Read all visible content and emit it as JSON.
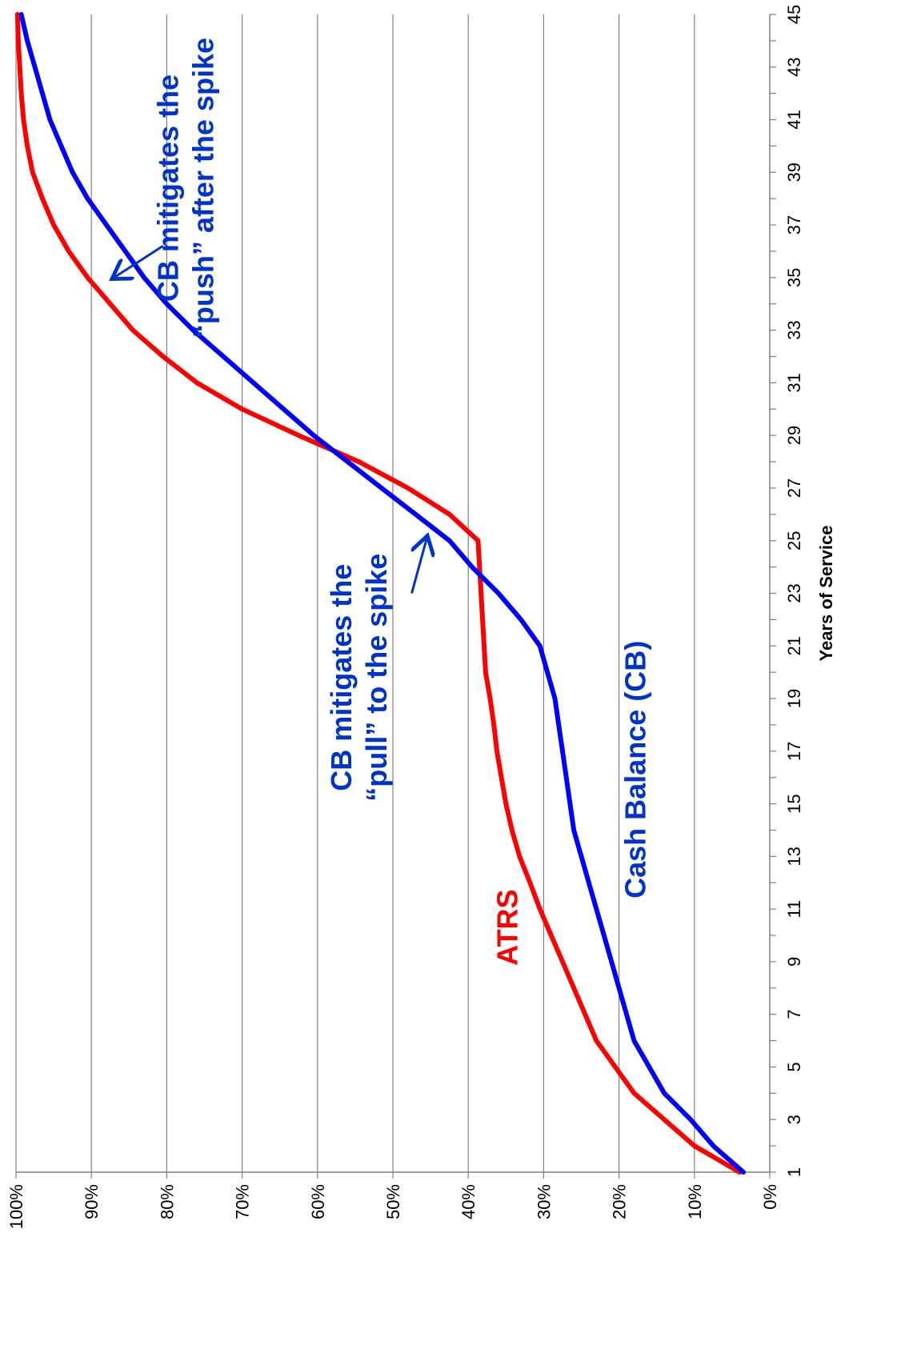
{
  "chart_data": {
    "type": "line",
    "title": "",
    "xlabel": "Years of Service",
    "ylabel": "",
    "orientation": "rotated 90 degrees counter-clockwise",
    "xlim": [
      1,
      45
    ],
    "ylim": [
      0,
      1
    ],
    "grid": "horizontal gridlines every 10%",
    "x_tick_labels": [
      "1",
      "3",
      "5",
      "7",
      "9",
      "11",
      "13",
      "15",
      "17",
      "19",
      "21",
      "23",
      "25",
      "27",
      "29",
      "31",
      "33",
      "35",
      "37",
      "39",
      "41",
      "43",
      "45"
    ],
    "y_tick_labels": [
      "0%",
      "10%",
      "20%",
      "30%",
      "40%",
      "50%",
      "60%",
      "70%",
      "80%",
      "90%",
      "100%"
    ],
    "x": [
      1,
      2,
      3,
      4,
      5,
      6,
      7,
      8,
      9,
      10,
      11,
      12,
      13,
      14,
      15,
      16,
      17,
      18,
      19,
      20,
      21,
      22,
      23,
      24,
      25,
      26,
      27,
      28,
      29,
      30,
      31,
      32,
      33,
      34,
      35,
      36,
      37,
      38,
      39,
      40,
      41,
      42,
      43,
      44,
      45
    ],
    "series": [
      {
        "name": "ATRS",
        "color": "#ff0000",
        "values": [
          0.04,
          0.1,
          0.14,
          0.18,
          0.205,
          0.23,
          0.245,
          0.26,
          0.275,
          0.29,
          0.305,
          0.318,
          0.332,
          0.342,
          0.35,
          0.356,
          0.362,
          0.366,
          0.371,
          0.377,
          0.379,
          0.381,
          0.383,
          0.385,
          0.387,
          0.425,
          0.48,
          0.545,
          0.625,
          0.7,
          0.76,
          0.805,
          0.845,
          0.875,
          0.905,
          0.93,
          0.95,
          0.965,
          0.978,
          0.985,
          0.99,
          0.993,
          0.995,
          0.997,
          0.998
        ]
      },
      {
        "name": "Cash Balance (CB)",
        "color": "#0000ff",
        "values": [
          0.035,
          0.075,
          0.105,
          0.14,
          0.16,
          0.18,
          0.19,
          0.2,
          0.21,
          0.22,
          0.23,
          0.24,
          0.25,
          0.26,
          0.265,
          0.27,
          0.275,
          0.28,
          0.285,
          0.295,
          0.305,
          0.33,
          0.36,
          0.395,
          0.425,
          0.47,
          0.515,
          0.56,
          0.605,
          0.645,
          0.685,
          0.725,
          0.765,
          0.8,
          0.83,
          0.855,
          0.88,
          0.905,
          0.925,
          0.94,
          0.955,
          0.965,
          0.975,
          0.985,
          0.993
        ]
      }
    ],
    "annotations": [
      {
        "id": "atrs",
        "text": "ATRS",
        "color": "#ff0000"
      },
      {
        "id": "cb",
        "text": "Cash Balance (CB)",
        "color": "#0033cc"
      },
      {
        "id": "pull",
        "lines": [
          "CB mitigates the",
          "“pull” to the spike"
        ],
        "color": "#0033cc"
      },
      {
        "id": "push",
        "lines": [
          "CB mitigates the",
          "“push” after the spike"
        ],
        "color": "#0033cc"
      }
    ]
  }
}
